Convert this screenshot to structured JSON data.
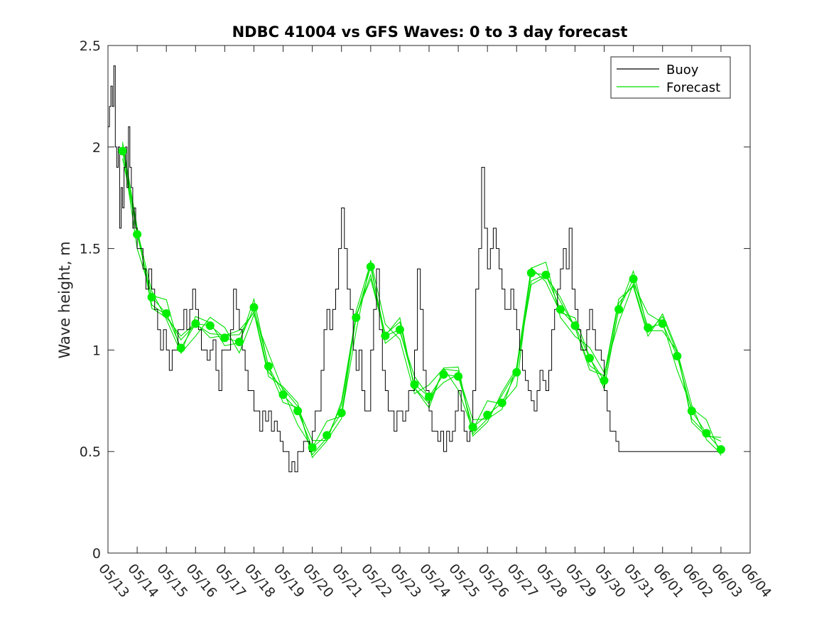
{
  "chart_data": {
    "type": "line",
    "title": "NDBC 41004 vs GFS Waves: 0 to 3 day forecast",
    "xlabel": "",
    "ylabel": "Wave height, m",
    "xlim": [
      0,
      22
    ],
    "ylim": [
      0,
      2.5
    ],
    "x_tick_labels": [
      "05/13",
      "05/14",
      "05/15",
      "05/16",
      "05/17",
      "05/18",
      "05/19",
      "05/20",
      "05/21",
      "05/22",
      "05/23",
      "05/24",
      "05/25",
      "05/26",
      "05/27",
      "05/28",
      "05/29",
      "05/30",
      "05/31",
      "06/01",
      "06/02",
      "06/03",
      "06/04"
    ],
    "y_ticks": [
      0,
      0.5,
      1,
      1.5,
      2,
      2.5
    ],
    "y_tick_labels": [
      "0",
      "0.5",
      "1",
      "1.5",
      "2",
      "2.5"
    ],
    "legend": {
      "placement": "top-right",
      "entries": [
        {
          "label": "Buoy",
          "color": "#000000"
        },
        {
          "label": "Forecast",
          "color": "#00e000"
        }
      ]
    },
    "colors": {
      "buoy": "#000000",
      "forecast": "#00e000",
      "marker": "#00ee00",
      "axes": "#262626"
    },
    "series": [
      {
        "name": "Buoy",
        "x": [
          0.0,
          0.05,
          0.1,
          0.15,
          0.2,
          0.25,
          0.3,
          0.35,
          0.4,
          0.45,
          0.5,
          0.55,
          0.6,
          0.65,
          0.7,
          0.75,
          0.8,
          0.85,
          0.9,
          0.95,
          1.0,
          1.1,
          1.2,
          1.3,
          1.4,
          1.5,
          1.6,
          1.7,
          1.8,
          1.9,
          2.0,
          2.1,
          2.2,
          2.3,
          2.4,
          2.5,
          2.6,
          2.7,
          2.8,
          2.9,
          3.0,
          3.1,
          3.2,
          3.3,
          3.4,
          3.5,
          3.6,
          3.7,
          3.8,
          3.9,
          4.0,
          4.1,
          4.2,
          4.3,
          4.4,
          4.5,
          4.6,
          4.7,
          4.8,
          4.9,
          5.0,
          5.1,
          5.2,
          5.3,
          5.4,
          5.5,
          5.6,
          5.7,
          5.8,
          5.9,
          6.0,
          6.1,
          6.2,
          6.3,
          6.4,
          6.5,
          6.6,
          6.7,
          6.8,
          6.9,
          7.0,
          7.1,
          7.2,
          7.3,
          7.4,
          7.5,
          7.6,
          7.7,
          7.8,
          7.9,
          8.0,
          8.1,
          8.2,
          8.3,
          8.4,
          8.5,
          8.6,
          8.7,
          8.8,
          8.9,
          9.0,
          9.1,
          9.2,
          9.3,
          9.4,
          9.5,
          9.6,
          9.7,
          9.8,
          9.9,
          10.0,
          10.1,
          10.2,
          10.3,
          10.4,
          10.5,
          10.6,
          10.7,
          10.8,
          10.9,
          11.0,
          11.1,
          11.2,
          11.3,
          11.4,
          11.5,
          11.6,
          11.7,
          11.8,
          11.9,
          12.0,
          12.1,
          12.2,
          12.3,
          12.4,
          12.5,
          12.6,
          12.7,
          12.8,
          12.9,
          13.0,
          13.1,
          13.2,
          13.3,
          13.4,
          13.5,
          13.6,
          13.7,
          13.8,
          13.9,
          14.0,
          14.1,
          14.2,
          14.3,
          14.4,
          14.5,
          14.6,
          14.7,
          14.8,
          14.9,
          15.0,
          15.1,
          15.2,
          15.3,
          15.4,
          15.5,
          15.6,
          15.7,
          15.8,
          15.9,
          16.0,
          16.1,
          16.2,
          16.3,
          16.4,
          16.5,
          16.6,
          16.7,
          16.8,
          16.9,
          17.0,
          17.1,
          17.2,
          17.3,
          17.4,
          17.5,
          17.6,
          17.7,
          17.8,
          17.9,
          18.0,
          18.1,
          18.2,
          18.3,
          18.4,
          18.5,
          18.6,
          18.7,
          18.8,
          18.9,
          19.0,
          19.1,
          19.2,
          19.3,
          19.4,
          19.5,
          19.6,
          19.7,
          19.8,
          19.9,
          20.0,
          20.1,
          20.2,
          20.3,
          20.4,
          20.5,
          20.6,
          20.7,
          20.8,
          20.9,
          21.0
        ],
        "values": [
          2.1,
          2.2,
          2.3,
          2.2,
          2.4,
          2.0,
          1.9,
          2.0,
          1.6,
          1.8,
          1.7,
          1.9,
          2.0,
          1.8,
          2.1,
          1.9,
          1.8,
          1.6,
          1.7,
          1.6,
          1.5,
          1.5,
          1.4,
          1.3,
          1.4,
          1.3,
          1.2,
          1.1,
          1.0,
          1.1,
          1.0,
          0.9,
          1.0,
          1.0,
          1.1,
          1.1,
          1.2,
          1.1,
          1.2,
          1.3,
          1.2,
          1.1,
          1.0,
          1.0,
          0.95,
          1.0,
          1.05,
          0.9,
          0.8,
          1.0,
          1.0,
          1.0,
          1.1,
          1.3,
          1.2,
          1.1,
          1.0,
          0.9,
          0.8,
          0.8,
          0.7,
          0.7,
          0.6,
          0.7,
          0.65,
          0.7,
          0.6,
          0.65,
          0.6,
          0.55,
          0.5,
          0.5,
          0.4,
          0.45,
          0.4,
          0.5,
          0.5,
          0.55,
          0.55,
          0.5,
          0.6,
          0.7,
          0.7,
          0.9,
          1.1,
          1.2,
          1.1,
          1.2,
          1.3,
          1.5,
          1.7,
          1.5,
          1.3,
          1.2,
          1.0,
          0.9,
          1.0,
          0.8,
          0.7,
          0.7,
          1.0,
          1.2,
          1.4,
          1.1,
          0.9,
          0.8,
          0.7,
          0.7,
          0.6,
          0.7,
          0.7,
          0.65,
          0.7,
          0.8,
          0.8,
          1.0,
          1.4,
          1.2,
          0.9,
          0.8,
          0.7,
          0.6,
          0.6,
          0.55,
          0.6,
          0.5,
          0.6,
          0.55,
          0.6,
          0.7,
          0.8,
          0.7,
          0.6,
          0.55,
          0.6,
          0.8,
          1.3,
          1.5,
          1.9,
          1.6,
          1.4,
          1.5,
          1.6,
          1.5,
          1.4,
          1.3,
          1.2,
          1.2,
          1.3,
          1.2,
          1.1,
          1.0,
          0.9,
          0.85,
          0.8,
          0.75,
          0.7,
          0.8,
          0.9,
          0.85,
          0.8,
          0.9,
          1.1,
          1.2,
          1.3,
          1.4,
          1.5,
          1.4,
          1.6,
          1.3,
          1.2,
          1.1,
          1.0,
          1.0,
          1.1,
          1.2,
          1.1,
          1.0,
          1.0,
          0.95,
          0.8,
          0.7,
          0.6,
          0.6,
          0.55,
          0.5,
          0.5,
          0.5,
          0.5,
          0.5,
          0.5,
          0.5,
          0.5,
          0.5,
          0.5,
          0.5,
          0.5,
          0.5,
          0.5,
          0.5,
          0.5,
          0.5,
          0.5,
          0.5,
          0.5,
          0.5,
          0.5,
          0.5,
          0.5,
          0.5,
          0.5,
          0.5,
          0.5,
          0.5,
          0.5,
          0.5,
          0.5,
          0.5,
          0.5,
          0.5,
          0.5
        ]
      },
      {
        "name": "Forecast",
        "x": [
          0.5,
          1.0,
          1.5,
          2.0,
          2.5,
          3.0,
          3.5,
          4.0,
          4.5,
          5.0,
          5.5,
          6.0,
          6.5,
          7.0,
          7.5,
          8.0,
          8.5,
          9.0,
          9.5,
          10.0,
          10.5,
          11.0,
          11.5,
          12.0,
          12.5,
          13.0,
          13.5,
          14.0,
          14.5,
          15.0,
          15.5,
          16.0,
          16.5,
          17.0,
          17.5,
          18.0,
          18.5,
          19.0,
          19.5,
          20.0,
          20.5,
          21.0
        ],
        "values": [
          1.98,
          1.57,
          1.26,
          1.18,
          1.01,
          1.13,
          1.12,
          1.06,
          1.04,
          1.21,
          0.92,
          0.78,
          0.7,
          0.52,
          0.58,
          0.69,
          1.16,
          1.41,
          1.07,
          1.1,
          0.83,
          0.77,
          0.88,
          0.87,
          0.62,
          0.68,
          0.74,
          0.89,
          1.38,
          1.37,
          1.2,
          1.12,
          0.96,
          0.85,
          1.2,
          1.35,
          1.11,
          1.13,
          0.97,
          0.7,
          0.59,
          0.51
        ]
      }
    ]
  }
}
